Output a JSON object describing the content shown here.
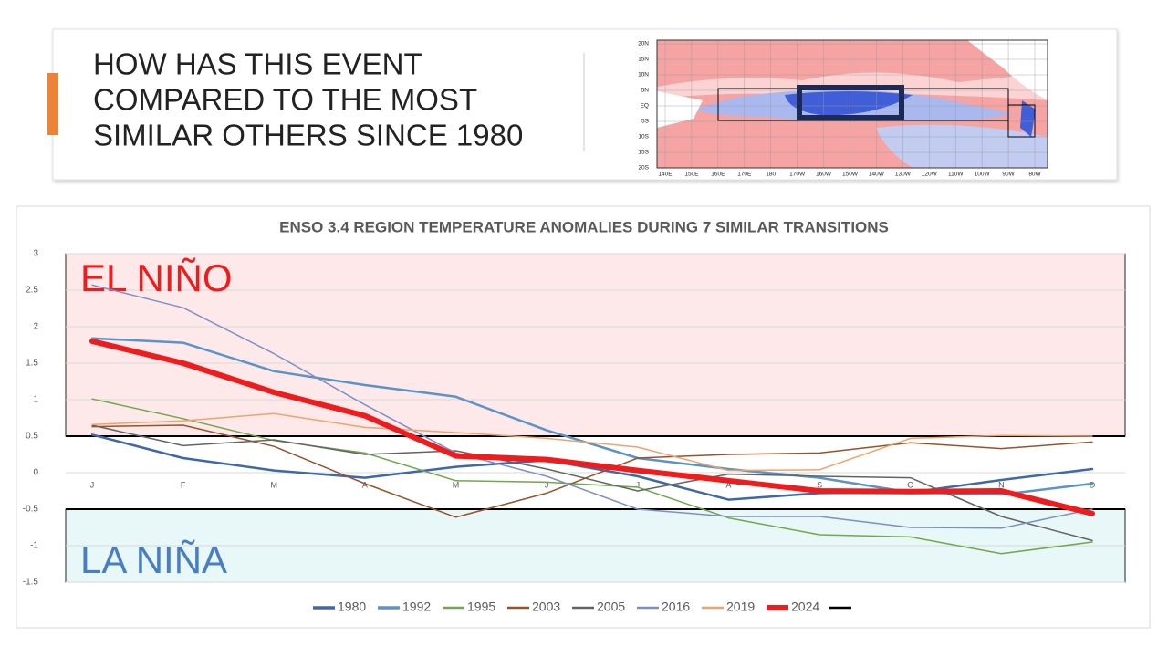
{
  "header": {
    "title_lines": [
      "HOW HAS THIS EVENT",
      "COMPARED TO THE MOST",
      "SIMILAR OTHERS SINCE 1980"
    ]
  },
  "map": {
    "lat_labels": [
      "20N",
      "15N",
      "10N",
      "5N",
      "EQ",
      "5S",
      "10S",
      "15S",
      "20S"
    ],
    "lon_labels": [
      "140E",
      "150E",
      "160E",
      "170E",
      "180",
      "170W",
      "160W",
      "150W",
      "140W",
      "130W",
      "120W",
      "110W",
      "100W",
      "90W",
      "80W"
    ]
  },
  "chart_data": {
    "type": "line",
    "title": "ENSO 3.4 REGION TEMPERATURE ANOMALIES DURING 7 SIMILAR TRANSITIONS",
    "categories": [
      "J",
      "F",
      "M",
      "A",
      "M",
      "J",
      "J",
      "A",
      "S",
      "O",
      "N",
      "D"
    ],
    "ylim": [
      -1.5,
      3
    ],
    "yticks": [
      -1.5,
      -1,
      -0.5,
      0,
      0.5,
      1,
      1.5,
      2,
      2.5,
      3
    ],
    "grid": true,
    "series": [
      {
        "name": "1980",
        "color": "#3e68a8",
        "width": 2.5,
        "values": [
          0.52,
          0.2,
          0.03,
          -0.07,
          0.08,
          0.17,
          -0.05,
          -0.37,
          -0.28,
          -0.27,
          -0.1,
          0.05
        ]
      },
      {
        "name": "1992",
        "color": "#5a93c9",
        "width": 2.5,
        "values": [
          1.84,
          1.78,
          1.39,
          1.2,
          1.04,
          0.58,
          0.2,
          0.05,
          -0.07,
          -0.27,
          -0.3,
          -0.15
        ]
      },
      {
        "name": "1995",
        "color": "#70a84a",
        "width": 1.5,
        "values": [
          1.01,
          0.74,
          0.44,
          0.27,
          -0.11,
          -0.13,
          -0.2,
          -0.62,
          -0.85,
          -0.88,
          -1.11,
          -0.95
        ]
      },
      {
        "name": "2003",
        "color": "#98532a",
        "width": 1.5,
        "values": [
          0.63,
          0.65,
          0.36,
          -0.15,
          -0.61,
          -0.28,
          0.2,
          0.25,
          0.27,
          0.41,
          0.33,
          0.42
        ]
      },
      {
        "name": "2005",
        "color": "#636363",
        "width": 1.5,
        "values": [
          0.65,
          0.37,
          0.45,
          0.25,
          0.3,
          0.05,
          -0.25,
          -0.02,
          -0.05,
          -0.07,
          -0.6,
          -0.93
        ]
      },
      {
        "name": "2016",
        "color": "#7f8fc4",
        "width": 1.5,
        "values": [
          2.57,
          2.26,
          1.63,
          0.93,
          0.27,
          -0.05,
          -0.5,
          -0.6,
          -0.6,
          -0.75,
          -0.76,
          -0.5
        ]
      },
      {
        "name": "2019",
        "color": "#f0a26a",
        "width": 1.5,
        "values": [
          0.66,
          0.71,
          0.81,
          0.62,
          0.55,
          0.47,
          0.35,
          0.03,
          0.04,
          0.47,
          0.51,
          0.5
        ]
      },
      {
        "name": "2024",
        "color": "#ee1c1c",
        "width": 6,
        "values": [
          1.8,
          1.5,
          1.1,
          0.78,
          0.23,
          0.18,
          0.03,
          -0.11,
          -0.25,
          -0.26,
          -0.25,
          -0.56
        ]
      }
    ],
    "thresholds": [
      0.5,
      -0.5
    ],
    "threshold_color": "#000000",
    "regions": [
      {
        "label": "EL NIÑO",
        "from": 0.5,
        "to": 3,
        "fill": "#fde9e9",
        "label_color": "#ee1c1c"
      },
      {
        "label": "LA NIÑA",
        "from": -1.5,
        "to": -0.5,
        "fill": "#e8f7f8",
        "label_color": "#4a7ec2"
      }
    ]
  }
}
